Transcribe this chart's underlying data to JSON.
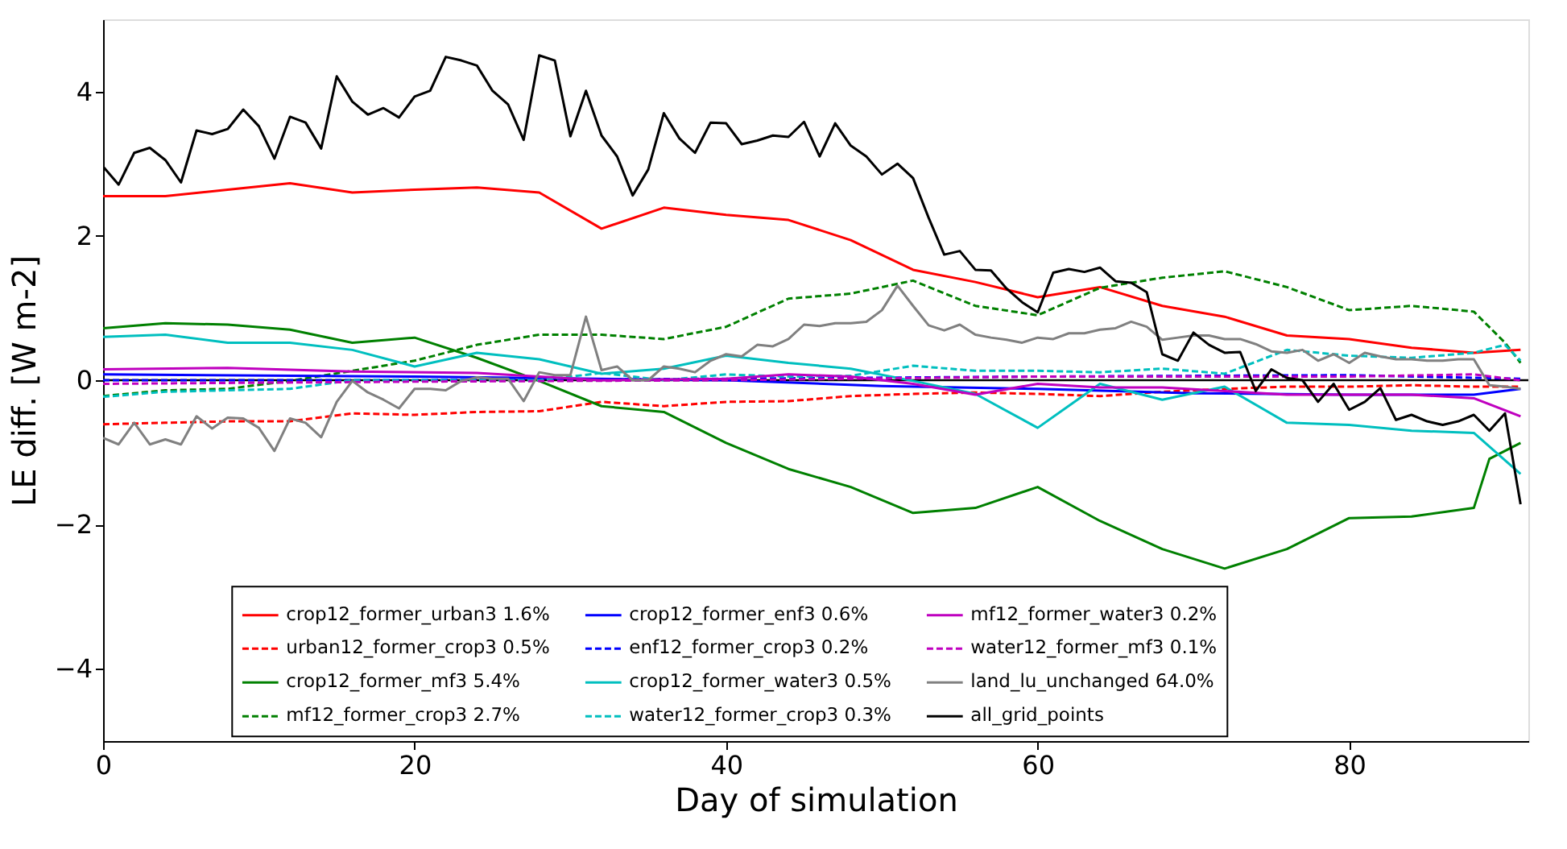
{
  "chart_data": {
    "type": "line",
    "xlabel": "Day of simulation",
    "ylabel": "LE diff. [W m-2]",
    "xlim": [
      0,
      91.5
    ],
    "ylim": [
      -5,
      5
    ],
    "xticks": [
      0,
      20,
      40,
      60,
      80
    ],
    "yticks": [
      -4,
      -2,
      0,
      2,
      4
    ],
    "grid": false,
    "legend": "bottom",
    "marker": "none",
    "ref_lines": [
      {
        "axis": "y",
        "value": 0,
        "label": null,
        "color": "#000000"
      }
    ],
    "series": [
      {
        "name": "crop12_former_urban3 1.6%",
        "color": "#ff0000",
        "line_style": "solid",
        "x": [
          0,
          4,
          8,
          12,
          16,
          20,
          24,
          28,
          32,
          36,
          40,
          44,
          48,
          52,
          56,
          60,
          64,
          68,
          72,
          76,
          80,
          84,
          88,
          91
        ],
        "values": [
          2.55,
          2.55,
          2.64,
          2.73,
          2.6,
          2.64,
          2.67,
          2.6,
          2.1,
          2.39,
          2.29,
          2.22,
          1.94,
          1.53,
          1.36,
          1.15,
          1.29,
          1.03,
          0.88,
          0.62,
          0.57,
          0.45,
          0.38,
          0.42
        ]
      },
      {
        "name": "urban12_former_crop3 0.5%",
        "color": "#ff0000",
        "line_style": "dashed",
        "x": [
          0,
          4,
          8,
          12,
          16,
          20,
          24,
          28,
          32,
          36,
          40,
          44,
          48,
          52,
          56,
          60,
          64,
          68,
          72,
          76,
          80,
          84,
          88,
          91
        ],
        "values": [
          -0.61,
          -0.59,
          -0.57,
          -0.57,
          -0.46,
          -0.48,
          -0.44,
          -0.43,
          -0.3,
          -0.36,
          -0.3,
          -0.29,
          -0.22,
          -0.19,
          -0.17,
          -0.19,
          -0.22,
          -0.16,
          -0.12,
          -0.09,
          -0.09,
          -0.07,
          -0.09,
          -0.09
        ]
      },
      {
        "name": "crop12_former_mf3 5.4%",
        "color": "#008000",
        "line_style": "solid",
        "x": [
          0,
          4,
          8,
          12,
          16,
          20,
          24,
          28,
          32,
          36,
          40,
          44,
          48,
          52,
          56,
          60,
          64,
          68,
          72,
          76,
          80,
          84,
          88,
          89,
          91
        ],
        "values": [
          0.72,
          0.79,
          0.77,
          0.7,
          0.52,
          0.59,
          0.31,
          -0.01,
          -0.36,
          -0.44,
          -0.87,
          -1.23,
          -1.48,
          -1.84,
          -1.77,
          -1.48,
          -1.95,
          -2.34,
          -2.61,
          -2.34,
          -1.91,
          -1.89,
          -1.77,
          -1.09,
          -0.87
        ]
      },
      {
        "name": "mf12_former_crop3 2.7%",
        "color": "#008000",
        "line_style": "dashed",
        "x": [
          0,
          4,
          8,
          12,
          16,
          20,
          24,
          28,
          32,
          36,
          40,
          44,
          48,
          52,
          56,
          60,
          64,
          68,
          72,
          76,
          80,
          84,
          88,
          90,
          91
        ],
        "values": [
          -0.22,
          -0.14,
          -0.12,
          -0.01,
          0.13,
          0.27,
          0.49,
          0.63,
          0.63,
          0.57,
          0.74,
          1.13,
          1.2,
          1.38,
          1.03,
          0.9,
          1.28,
          1.42,
          1.51,
          1.29,
          0.97,
          1.03,
          0.95,
          0.52,
          0.24
        ]
      },
      {
        "name": "crop12_former_enf3 0.6%",
        "color": "#0000ff",
        "line_style": "solid",
        "x": [
          0,
          20,
          40,
          50,
          60,
          70,
          80,
          88,
          91
        ],
        "values": [
          0.08,
          0.05,
          0.0,
          -0.08,
          -0.12,
          -0.18,
          -0.2,
          -0.2,
          -0.12
        ]
      },
      {
        "name": "enf12_former_crop3 0.2%",
        "color": "#0000ff",
        "line_style": "dashed",
        "x": [
          0,
          20,
          40,
          60,
          80,
          91
        ],
        "values": [
          0.0,
          0.0,
          0.02,
          0.05,
          0.07,
          0.02
        ]
      },
      {
        "name": "crop12_former_water3 0.5%",
        "color": "#00bfbf",
        "line_style": "solid",
        "x": [
          0,
          4,
          8,
          12,
          16,
          20,
          24,
          28,
          32,
          36,
          40,
          44,
          48,
          52,
          56,
          60,
          64,
          68,
          72,
          76,
          80,
          84,
          88,
          91
        ],
        "values": [
          0.6,
          0.63,
          0.52,
          0.52,
          0.42,
          0.19,
          0.38,
          0.29,
          0.09,
          0.16,
          0.34,
          0.24,
          0.16,
          -0.01,
          -0.19,
          -0.66,
          -0.05,
          -0.27,
          -0.09,
          -0.59,
          -0.62,
          -0.7,
          -0.73,
          -1.3
        ]
      },
      {
        "name": "water12_former_crop3 0.3%",
        "color": "#00bfbf",
        "line_style": "dashed",
        "x": [
          0,
          4,
          8,
          12,
          16,
          20,
          24,
          28,
          32,
          36,
          40,
          44,
          48,
          52,
          56,
          60,
          64,
          68,
          72,
          76,
          80,
          84,
          88,
          90,
          91
        ],
        "values": [
          -0.23,
          -0.16,
          -0.14,
          -0.12,
          0.0,
          0.0,
          0.0,
          0.0,
          0.1,
          0.0,
          0.08,
          0.05,
          0.06,
          0.2,
          0.13,
          0.13,
          0.11,
          0.16,
          0.09,
          0.42,
          0.34,
          0.31,
          0.38,
          0.49,
          0.27
        ]
      },
      {
        "name": "mf12_former_water3 0.2%",
        "color": "#bf00bf",
        "line_style": "solid",
        "x": [
          0,
          8,
          16,
          24,
          32,
          40,
          44,
          48,
          52,
          56,
          60,
          64,
          68,
          72,
          76,
          80,
          84,
          88,
          91
        ],
        "values": [
          0.15,
          0.17,
          0.12,
          0.1,
          0.0,
          0.02,
          0.08,
          0.05,
          -0.05,
          -0.2,
          -0.05,
          -0.1,
          -0.1,
          -0.15,
          -0.2,
          -0.2,
          -0.2,
          -0.25,
          -0.5
        ]
      },
      {
        "name": "water12_former_mf3 0.1%",
        "color": "#bf00bf",
        "line_style": "dashed",
        "x": [
          0,
          20,
          40,
          60,
          80,
          88,
          91
        ],
        "values": [
          -0.05,
          -0.02,
          0.0,
          0.05,
          0.05,
          0.08,
          0.0
        ]
      },
      {
        "name": "land_lu_unchanged 64.0%",
        "color": "#808080",
        "line_style": "solid",
        "x": [
          0,
          1,
          2,
          3,
          4,
          5,
          6,
          7,
          8,
          9,
          10,
          11,
          12,
          13,
          14,
          15,
          16,
          17,
          18,
          19,
          20,
          21,
          22,
          23,
          24,
          25,
          26,
          27,
          28,
          29,
          30,
          31,
          32,
          33,
          34,
          35,
          36,
          37,
          38,
          39,
          40,
          41,
          42,
          43,
          44,
          45,
          46,
          47,
          48,
          49,
          50,
          51,
          52,
          53,
          54,
          55,
          56,
          57,
          58,
          59,
          60,
          61,
          62,
          63,
          64,
          65,
          66,
          67,
          68,
          69,
          70,
          71,
          72,
          73,
          74,
          75,
          76,
          77,
          78,
          79,
          80,
          81,
          82,
          83,
          84,
          85,
          86,
          87,
          88,
          89,
          90,
          91
        ],
        "values": [
          -0.8,
          -0.89,
          -0.59,
          -0.89,
          -0.82,
          -0.89,
          -0.5,
          -0.67,
          -0.52,
          -0.53,
          -0.66,
          -0.98,
          -0.53,
          -0.59,
          -0.79,
          -0.3,
          -0.01,
          -0.17,
          -0.27,
          -0.39,
          -0.12,
          -0.12,
          -0.14,
          -0.01,
          0.04,
          0.02,
          0.02,
          -0.29,
          0.11,
          0.07,
          0.07,
          0.88,
          0.14,
          0.19,
          0.0,
          0.0,
          0.19,
          0.16,
          0.11,
          0.27,
          0.36,
          0.33,
          0.49,
          0.47,
          0.57,
          0.77,
          0.75,
          0.79,
          0.79,
          0.81,
          0.97,
          1.31,
          1.03,
          0.76,
          0.69,
          0.77,
          0.63,
          0.59,
          0.56,
          0.52,
          0.59,
          0.57,
          0.65,
          0.65,
          0.7,
          0.72,
          0.81,
          0.74,
          0.56,
          0.59,
          0.62,
          0.62,
          0.57,
          0.57,
          0.5,
          0.4,
          0.38,
          0.42,
          0.27,
          0.36,
          0.24,
          0.38,
          0.33,
          0.29,
          0.29,
          0.27,
          0.27,
          0.29,
          0.29,
          -0.07,
          -0.09,
          -0.12
        ]
      },
      {
        "name": "all_grid_points",
        "color": "#000000",
        "line_style": "solid",
        "x": [
          0,
          1,
          2,
          3,
          4,
          5,
          6,
          7,
          8,
          9,
          10,
          11,
          12,
          13,
          14,
          15,
          16,
          17,
          18,
          19,
          20,
          21,
          22,
          23,
          24,
          25,
          26,
          27,
          28,
          29,
          30,
          31,
          32,
          33,
          34,
          35,
          36,
          37,
          38,
          39,
          40,
          41,
          42,
          43,
          44,
          45,
          46,
          47,
          48,
          49,
          50,
          51,
          52,
          53,
          54,
          55,
          56,
          57,
          58,
          59,
          60,
          61,
          62,
          63,
          64,
          65,
          66,
          67,
          68,
          69,
          70,
          71,
          72,
          73,
          74,
          75,
          76,
          77,
          78,
          79,
          80,
          81,
          82,
          83,
          84,
          85,
          86,
          87,
          88,
          89,
          90,
          91
        ],
        "values": [
          2.96,
          2.71,
          3.15,
          3.22,
          3.05,
          2.74,
          3.46,
          3.41,
          3.48,
          3.75,
          3.52,
          3.07,
          3.65,
          3.57,
          3.21,
          4.21,
          3.86,
          3.68,
          3.77,
          3.64,
          3.93,
          4.01,
          4.48,
          4.43,
          4.36,
          4.01,
          3.82,
          3.33,
          4.5,
          4.43,
          3.38,
          4.01,
          3.39,
          3.1,
          2.56,
          2.92,
          3.7,
          3.35,
          3.15,
          3.57,
          3.56,
          3.27,
          3.32,
          3.39,
          3.37,
          3.58,
          3.1,
          3.56,
          3.25,
          3.1,
          2.85,
          3.0,
          2.8,
          2.25,
          1.74,
          1.79,
          1.53,
          1.52,
          1.27,
          1.08,
          0.94,
          1.49,
          1.54,
          1.5,
          1.56,
          1.37,
          1.35,
          1.22,
          0.36,
          0.27,
          0.66,
          0.49,
          0.38,
          0.39,
          -0.15,
          0.15,
          0.03,
          0.0,
          -0.3,
          -0.05,
          -0.41,
          -0.3,
          -0.11,
          -0.55,
          -0.48,
          -0.57,
          -0.62,
          -0.57,
          -0.48,
          -0.7,
          -0.46,
          -1.72
        ]
      }
    ]
  }
}
